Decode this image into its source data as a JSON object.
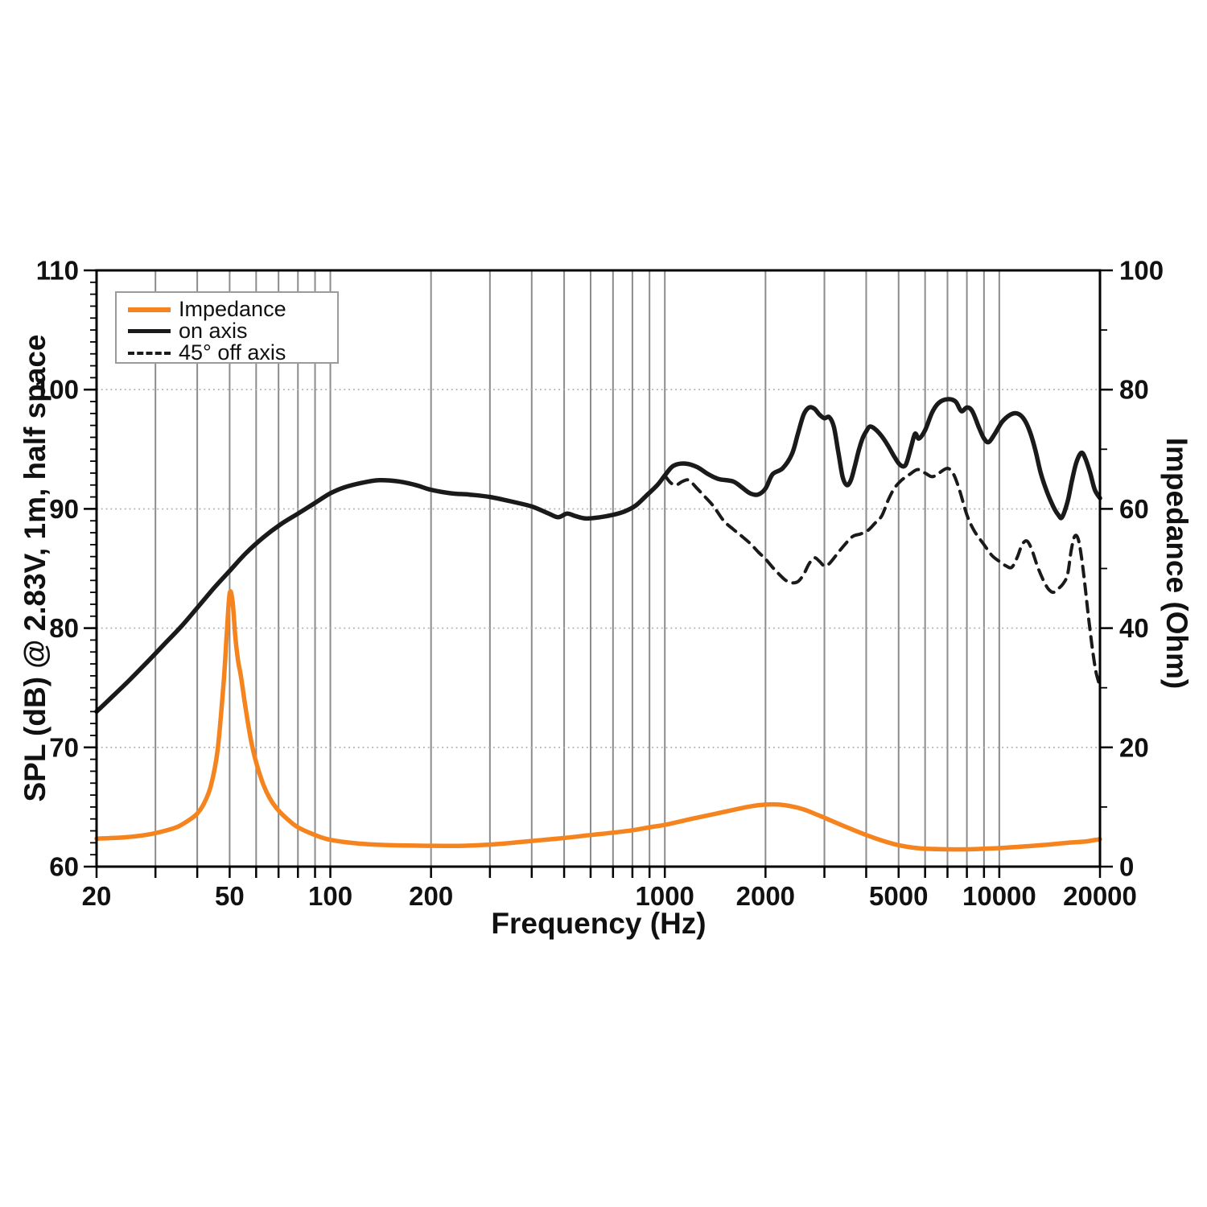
{
  "chart_data": {
    "type": "line",
    "title": "",
    "xlabel": "Frequency (Hz)",
    "ylabel_left": "SPL (dB) @ 2.83V, 1m, half space",
    "ylabel_right": "Impedance (Ohm)",
    "x_scale": "log",
    "x_range": [
      20,
      20000
    ],
    "y_left_range": [
      60,
      110
    ],
    "y_right_range": [
      0,
      100
    ],
    "x_labeled_ticks": [
      20,
      50,
      100,
      200,
      1000,
      2000,
      5000,
      10000,
      20000
    ],
    "x_gridlines": [
      30,
      40,
      50,
      60,
      70,
      80,
      90,
      100,
      200,
      300,
      400,
      500,
      600,
      700,
      800,
      900,
      1000,
      2000,
      3000,
      4000,
      5000,
      6000,
      7000,
      8000,
      9000,
      10000
    ],
    "y_left_ticks": [
      60,
      70,
      80,
      90,
      100,
      110
    ],
    "y_left_minor_step": 1,
    "y_right_ticks": [
      0,
      20,
      40,
      60,
      80,
      100
    ],
    "y_right_minor_ticks": [
      10,
      30,
      50,
      70,
      90
    ],
    "h_gridlines": [
      70,
      80,
      90,
      100
    ],
    "grid_on": true,
    "legend_position": "top-left",
    "colors": {
      "impedance": "#f5841f",
      "on_axis": "#1a1a1a",
      "off_axis": "#1a1a1a",
      "grid_vertical": "#8c8c8c",
      "grid_horizontal": "#ababab",
      "frame": "#000000",
      "text": "#111111"
    },
    "legend": [
      {
        "label": "Impedance",
        "style": "solid",
        "color": "#f5841f"
      },
      {
        "label": "on axis",
        "style": "solid",
        "color": "#1a1a1a"
      },
      {
        "label": "45° off axis",
        "style": "dashed",
        "color": "#1a1a1a"
      }
    ],
    "series": [
      {
        "name": "Impedance",
        "axis": "right",
        "style": "solid",
        "color": "#f5841f",
        "width": 5.5,
        "points": [
          [
            20,
            4.7
          ],
          [
            24,
            4.9
          ],
          [
            28,
            5.3
          ],
          [
            32,
            6.0
          ],
          [
            35,
            6.7
          ],
          [
            38,
            7.9
          ],
          [
            40,
            8.9
          ],
          [
            42,
            10.7
          ],
          [
            44,
            13.7
          ],
          [
            46,
            19.5
          ],
          [
            48,
            31
          ],
          [
            49,
            39
          ],
          [
            50,
            45.8
          ],
          [
            51,
            44.5
          ],
          [
            52,
            38.5
          ],
          [
            53,
            34.5
          ],
          [
            54,
            32
          ],
          [
            56,
            26
          ],
          [
            58,
            21
          ],
          [
            60,
            17.5
          ],
          [
            63,
            13.8
          ],
          [
            66,
            11.4
          ],
          [
            70,
            9.4
          ],
          [
            75,
            7.8
          ],
          [
            80,
            6.6
          ],
          [
            90,
            5.3
          ],
          [
            100,
            4.5
          ],
          [
            120,
            3.9
          ],
          [
            150,
            3.6
          ],
          [
            200,
            3.5
          ],
          [
            250,
            3.5
          ],
          [
            300,
            3.7
          ],
          [
            350,
            4.0
          ],
          [
            400,
            4.3
          ],
          [
            500,
            4.8
          ],
          [
            600,
            5.3
          ],
          [
            700,
            5.7
          ],
          [
            800,
            6.1
          ],
          [
            900,
            6.6
          ],
          [
            1000,
            7.0
          ],
          [
            1200,
            8.0
          ],
          [
            1400,
            8.8
          ],
          [
            1600,
            9.5
          ],
          [
            1800,
            10.1
          ],
          [
            2000,
            10.4
          ],
          [
            2200,
            10.4
          ],
          [
            2400,
            10.1
          ],
          [
            2600,
            9.6
          ],
          [
            2800,
            8.9
          ],
          [
            3000,
            8.2
          ],
          [
            3500,
            6.6
          ],
          [
            4000,
            5.3
          ],
          [
            4500,
            4.3
          ],
          [
            5000,
            3.6
          ],
          [
            5500,
            3.2
          ],
          [
            6000,
            3.0
          ],
          [
            7000,
            2.9
          ],
          [
            8000,
            2.9
          ],
          [
            9000,
            3.0
          ],
          [
            10000,
            3.1
          ],
          [
            12000,
            3.4
          ],
          [
            14000,
            3.7
          ],
          [
            16000,
            4.0
          ],
          [
            18000,
            4.2
          ],
          [
            19000,
            4.4
          ],
          [
            20000,
            4.6
          ]
        ]
      },
      {
        "name": "on axis",
        "axis": "left",
        "style": "solid",
        "color": "#1a1a1a",
        "width": 5.5,
        "points": [
          [
            20,
            73.0
          ],
          [
            22,
            74.1
          ],
          [
            25,
            75.6
          ],
          [
            28,
            77.0
          ],
          [
            32,
            78.7
          ],
          [
            36,
            80.2
          ],
          [
            40,
            81.7
          ],
          [
            45,
            83.4
          ],
          [
            50,
            84.8
          ],
          [
            56,
            86.3
          ],
          [
            63,
            87.6
          ],
          [
            71,
            88.7
          ],
          [
            80,
            89.6
          ],
          [
            90,
            90.5
          ],
          [
            100,
            91.3
          ],
          [
            110,
            91.8
          ],
          [
            125,
            92.2
          ],
          [
            140,
            92.4
          ],
          [
            160,
            92.3
          ],
          [
            180,
            92.0
          ],
          [
            200,
            91.6
          ],
          [
            230,
            91.3
          ],
          [
            260,
            91.2
          ],
          [
            300,
            91.0
          ],
          [
            350,
            90.6
          ],
          [
            400,
            90.2
          ],
          [
            450,
            89.6
          ],
          [
            480,
            89.3
          ],
          [
            510,
            89.6
          ],
          [
            540,
            89.4
          ],
          [
            580,
            89.2
          ],
          [
            640,
            89.3
          ],
          [
            700,
            89.5
          ],
          [
            760,
            89.8
          ],
          [
            820,
            90.3
          ],
          [
            880,
            91.1
          ],
          [
            950,
            92.0
          ],
          [
            1000,
            92.8
          ],
          [
            1060,
            93.6
          ],
          [
            1150,
            93.8
          ],
          [
            1250,
            93.5
          ],
          [
            1350,
            92.9
          ],
          [
            1450,
            92.5
          ],
          [
            1600,
            92.3
          ],
          [
            1700,
            91.8
          ],
          [
            1800,
            91.3
          ],
          [
            1900,
            91.2
          ],
          [
            2000,
            91.7
          ],
          [
            2100,
            92.9
          ],
          [
            2250,
            93.4
          ],
          [
            2400,
            94.6
          ],
          [
            2500,
            96.3
          ],
          [
            2600,
            97.9
          ],
          [
            2700,
            98.5
          ],
          [
            2800,
            98.4
          ],
          [
            2900,
            97.9
          ],
          [
            3000,
            97.6
          ],
          [
            3100,
            97.7
          ],
          [
            3200,
            96.9
          ],
          [
            3300,
            94.8
          ],
          [
            3400,
            92.7
          ],
          [
            3500,
            92.0
          ],
          [
            3600,
            92.4
          ],
          [
            3700,
            93.6
          ],
          [
            3800,
            94.9
          ],
          [
            3900,
            95.9
          ],
          [
            4000,
            96.5
          ],
          [
            4100,
            96.9
          ],
          [
            4250,
            96.7
          ],
          [
            4450,
            96.1
          ],
          [
            4650,
            95.3
          ],
          [
            4850,
            94.4
          ],
          [
            5050,
            93.7
          ],
          [
            5250,
            93.7
          ],
          [
            5450,
            95.2
          ],
          [
            5600,
            96.3
          ],
          [
            5750,
            95.9
          ],
          [
            6000,
            96.6
          ],
          [
            6300,
            98.1
          ],
          [
            6600,
            98.9
          ],
          [
            7000,
            99.2
          ],
          [
            7400,
            99.0
          ],
          [
            7700,
            98.2
          ],
          [
            8000,
            98.5
          ],
          [
            8300,
            98.2
          ],
          [
            8700,
            96.8
          ],
          [
            9000,
            95.9
          ],
          [
            9300,
            95.6
          ],
          [
            9700,
            96.3
          ],
          [
            10200,
            97.3
          ],
          [
            10800,
            97.9
          ],
          [
            11300,
            98.0
          ],
          [
            11800,
            97.6
          ],
          [
            12300,
            96.6
          ],
          [
            12800,
            95.0
          ],
          [
            13300,
            93.0
          ],
          [
            13900,
            91.4
          ],
          [
            14500,
            90.2
          ],
          [
            15000,
            89.5
          ],
          [
            15400,
            89.3
          ],
          [
            16000,
            90.6
          ],
          [
            16500,
            92.4
          ],
          [
            17000,
            93.9
          ],
          [
            17600,
            94.7
          ],
          [
            18100,
            94.2
          ],
          [
            18700,
            93.0
          ],
          [
            19300,
            91.6
          ],
          [
            20000,
            90.9
          ]
        ]
      },
      {
        "name": "45° off axis",
        "axis": "left",
        "style": "dashed",
        "color": "#1a1a1a",
        "width": 4,
        "points": [
          [
            1000,
            92.8
          ],
          [
            1040,
            92.2
          ],
          [
            1080,
            92.0
          ],
          [
            1130,
            92.3
          ],
          [
            1180,
            92.4
          ],
          [
            1250,
            91.7
          ],
          [
            1320,
            91.0
          ],
          [
            1400,
            90.2
          ],
          [
            1500,
            89.0
          ],
          [
            1600,
            88.3
          ],
          [
            1700,
            87.7
          ],
          [
            1800,
            87.1
          ],
          [
            1900,
            86.4
          ],
          [
            2000,
            85.8
          ],
          [
            2100,
            85.1
          ],
          [
            2200,
            84.5
          ],
          [
            2300,
            84.0
          ],
          [
            2400,
            83.8
          ],
          [
            2500,
            83.9
          ],
          [
            2600,
            84.5
          ],
          [
            2700,
            85.4
          ],
          [
            2800,
            85.9
          ],
          [
            2900,
            85.6
          ],
          [
            3000,
            85.2
          ],
          [
            3100,
            85.4
          ],
          [
            3250,
            86.1
          ],
          [
            3450,
            87.0
          ],
          [
            3650,
            87.7
          ],
          [
            3850,
            87.9
          ],
          [
            4050,
            88.2
          ],
          [
            4250,
            88.8
          ],
          [
            4450,
            89.4
          ],
          [
            4650,
            90.7
          ],
          [
            4850,
            91.7
          ],
          [
            5100,
            92.4
          ],
          [
            5400,
            92.9
          ],
          [
            5700,
            93.3
          ],
          [
            6000,
            93.0
          ],
          [
            6300,
            92.7
          ],
          [
            6600,
            93.0
          ],
          [
            7000,
            93.4
          ],
          [
            7300,
            92.9
          ],
          [
            7600,
            91.6
          ],
          [
            8000,
            89.5
          ],
          [
            8400,
            88.2
          ],
          [
            9000,
            87.0
          ],
          [
            9500,
            86.1
          ],
          [
            10000,
            85.6
          ],
          [
            10500,
            85.2
          ],
          [
            10900,
            85.1
          ],
          [
            11300,
            85.9
          ],
          [
            11700,
            87.0
          ],
          [
            12100,
            87.3
          ],
          [
            12500,
            86.6
          ],
          [
            13000,
            85.2
          ],
          [
            13500,
            84.1
          ],
          [
            14000,
            83.3
          ],
          [
            14500,
            83.0
          ],
          [
            15000,
            83.3
          ],
          [
            15500,
            83.7
          ],
          [
            16000,
            84.5
          ],
          [
            16400,
            86.5
          ],
          [
            16800,
            87.7
          ],
          [
            17200,
            87.5
          ],
          [
            17600,
            86.0
          ],
          [
            18000,
            83.8
          ],
          [
            18500,
            80.8
          ],
          [
            19000,
            78.2
          ],
          [
            19400,
            76.5
          ],
          [
            19800,
            75.5
          ]
        ]
      }
    ]
  }
}
